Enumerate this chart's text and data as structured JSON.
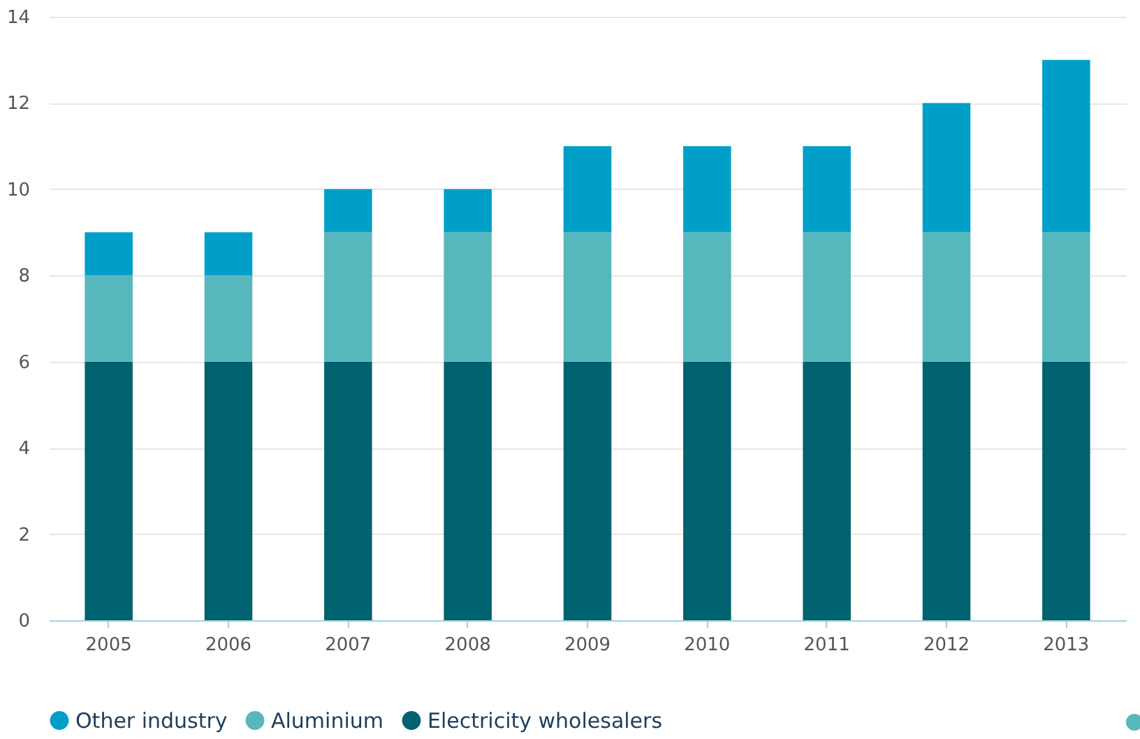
{
  "chart_data": {
    "type": "bar",
    "stacked": true,
    "categories": [
      "2005",
      "2006",
      "2007",
      "2008",
      "2009",
      "2010",
      "2011",
      "2012",
      "2013"
    ],
    "series": [
      {
        "name": "Electricity wholesalers",
        "color": "#00626e",
        "values": [
          6,
          6,
          6,
          6,
          6,
          6,
          6,
          6,
          6
        ]
      },
      {
        "name": "Aluminium",
        "color": "#56b8bc",
        "values": [
          2,
          2,
          3,
          3,
          3,
          3,
          3,
          3,
          3
        ]
      },
      {
        "name": "Other industry",
        "color": "#009fc8",
        "values": [
          1,
          1,
          1,
          1,
          2,
          2,
          2,
          3,
          4
        ]
      }
    ],
    "ylim": [
      0,
      14
    ],
    "yticks": [
      0,
      2,
      4,
      6,
      8,
      10,
      12,
      14
    ],
    "grid": "y",
    "legend": "bottom"
  }
}
